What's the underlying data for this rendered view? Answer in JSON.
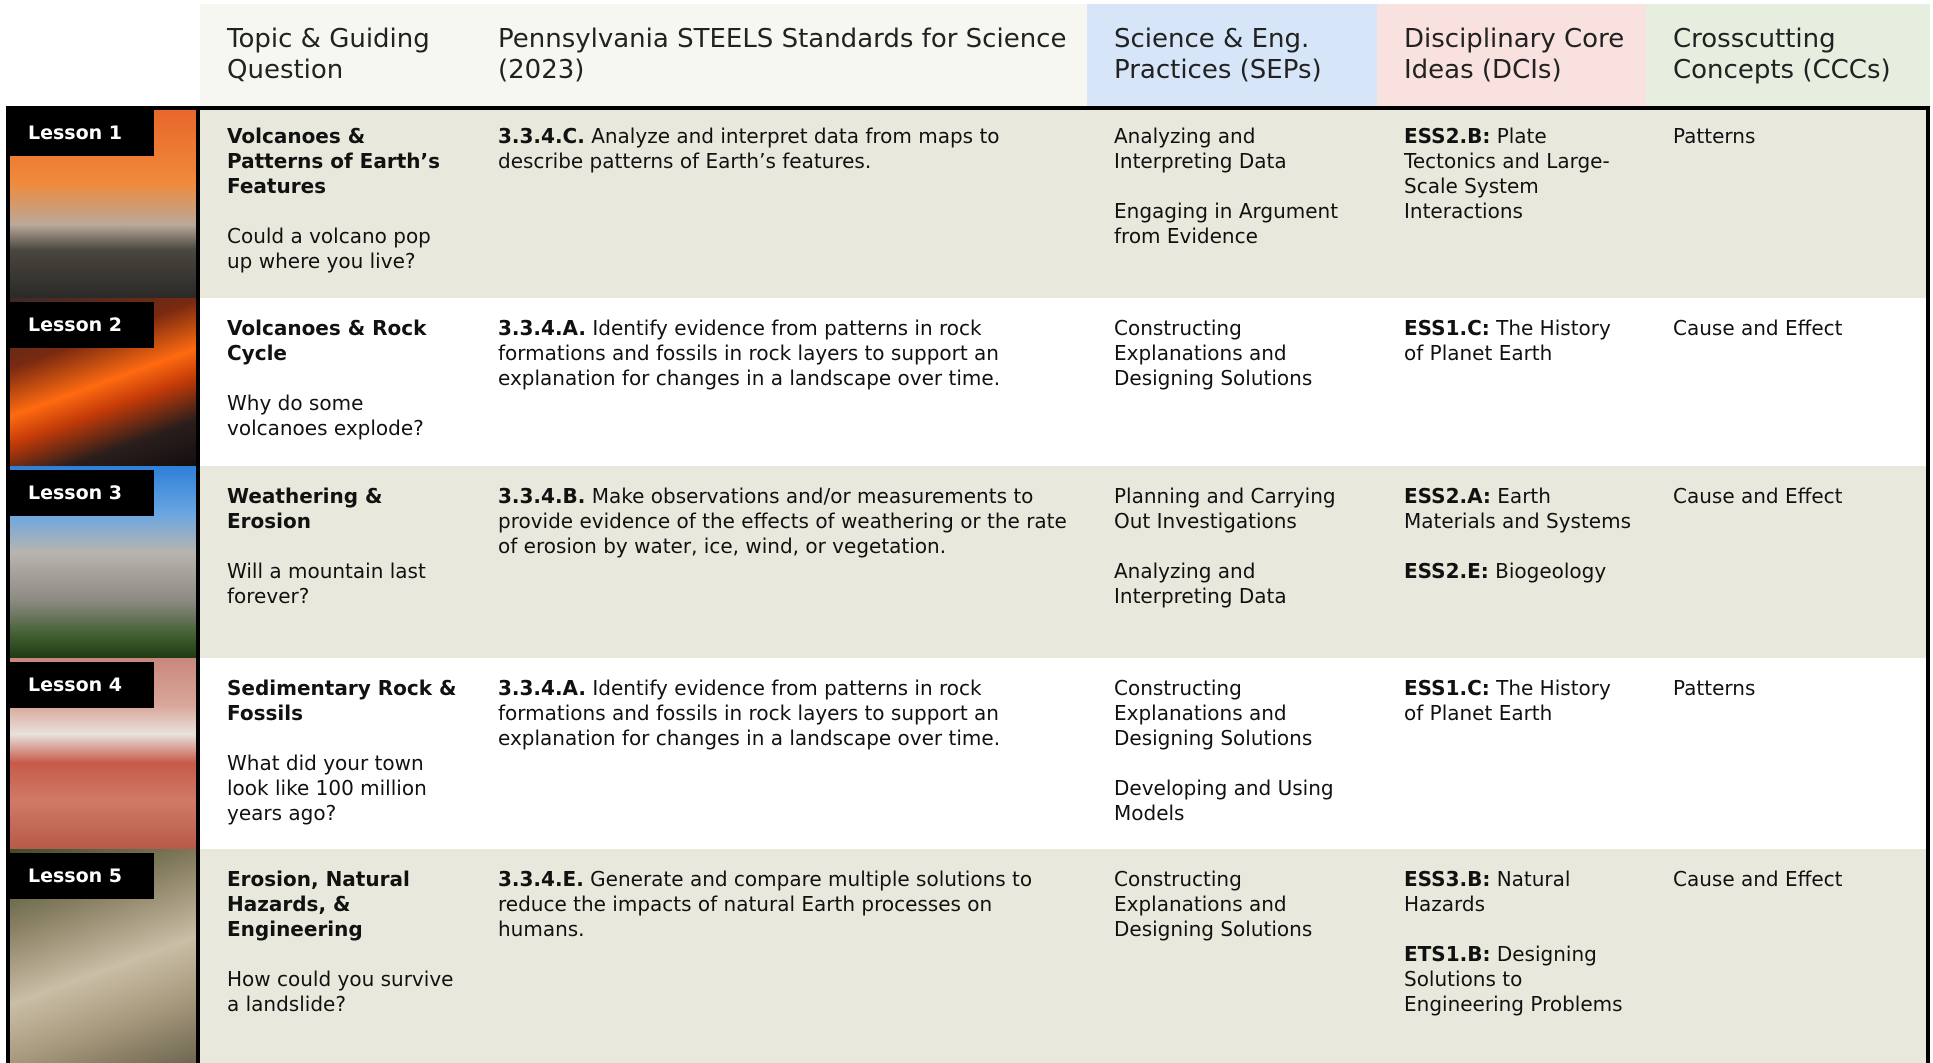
{
  "header": {
    "columns": [
      "Topic & Guiding Question",
      "Pennsylvania STEELS Standards for Science (2023)",
      "Science & Eng. Practices (SEPs)",
      "Disciplinary Core Ideas (DCIs)",
      "Crosscutting Concepts (CCCs)"
    ]
  },
  "rows": [
    {
      "lesson": "Lesson 1",
      "topic": "Volcanoes & Patterns of Earth’s Features",
      "question": "Could a volcano pop up where you live?",
      "standard": {
        "code": "3.3.4.C.",
        "text": "Analyze and interpret data from maps to describe patterns of Earth’s features."
      },
      "seps": [
        "Analyzing and Interpreting Data",
        "Engaging in Argument from Evidence"
      ],
      "dcis": [
        {
          "code": "ESS2.B:",
          "text": "Plate Tectonics and Large-Scale System Interactions"
        }
      ],
      "ccc": "Patterns"
    },
    {
      "lesson": "Lesson 2",
      "topic": "Volcanoes & Rock Cycle",
      "question": "Why do some volcanoes explode?",
      "standard": {
        "code": "3.3.4.A.",
        "text": "Identify evidence from patterns in rock formations and fossils in rock layers to support an explanation for changes in a landscape over time."
      },
      "seps": [
        "Constructing Explanations and Designing Solutions"
      ],
      "dcis": [
        {
          "code": "ESS1.C:",
          "text": "The History of Planet Earth"
        }
      ],
      "ccc": "Cause and Effect"
    },
    {
      "lesson": "Lesson 3",
      "topic": "Weathering & Erosion",
      "question": "Will a mountain last forever?",
      "standard": {
        "code": "3.3.4.B.",
        "text": "Make observations and/or measurements to provide evidence of the effects of weathering or the rate of erosion by water, ice, wind, or vegetation."
      },
      "seps": [
        "Planning and Carrying Out Investigations",
        "Analyzing and Interpreting Data"
      ],
      "dcis": [
        {
          "code": "ESS2.A:",
          "text": "Earth Materials and Systems"
        },
        {
          "code": "ESS2.E:",
          "text": "Biogeology"
        }
      ],
      "ccc": "Cause and Effect"
    },
    {
      "lesson": "Lesson 4",
      "topic": "Sedimentary Rock & Fossils",
      "question": "What did your town look like 100 million years ago?",
      "standard": {
        "code": "3.3.4.A.",
        "text": "Identify evidence from patterns in rock formations and fossils in rock layers to support an explanation for changes in a landscape over time."
      },
      "seps": [
        "Constructing Explanations and Designing Solutions",
        "Developing and Using Models"
      ],
      "dcis": [
        {
          "code": "ESS1.C:",
          "text": "The History of Planet Earth"
        }
      ],
      "ccc": "Patterns"
    },
    {
      "lesson": "Lesson 5",
      "topic": "Erosion, Natural Hazards, & Engineering",
      "question": "How could you survive a landslide?",
      "standard": {
        "code": "3.3.4.E.",
        "text": "Generate and compare multiple solutions to reduce the impacts of natural Earth processes on humans."
      },
      "seps": [
        "Constructing Explanations and Designing Solutions"
      ],
      "dcis": [
        {
          "code": "ESS3.B:",
          "text": "Natural Hazards"
        },
        {
          "code": "ETS1.B:",
          "text": "Designing Solutions to Engineering Problems"
        }
      ],
      "ccc": "Cause and Effect"
    }
  ]
}
